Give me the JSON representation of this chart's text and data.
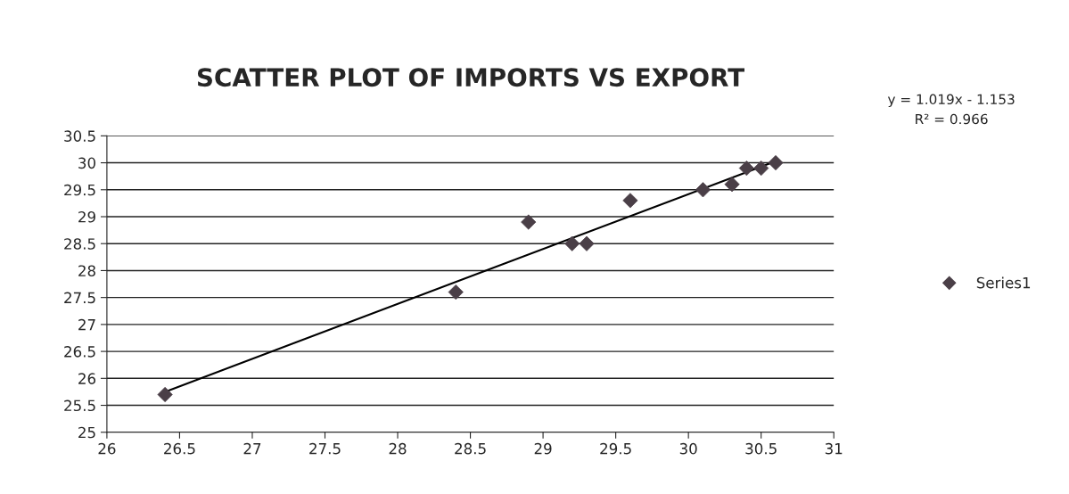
{
  "chart_data": {
    "type": "scatter",
    "title": "SCATTER PLOT OF IMPORTS VS EXPORT",
    "series": [
      {
        "name": "Series1",
        "color": "#4a3f47",
        "marker": "diamond",
        "x": [
          26.4,
          28.4,
          28.9,
          29.2,
          29.3,
          29.6,
          30.1,
          30.3,
          30.4,
          30.5,
          30.6
        ],
        "values": [
          25.7,
          27.6,
          28.9,
          28.5,
          28.5,
          29.3,
          29.5,
          29.6,
          29.9,
          29.9,
          30.0
        ]
      },
      {
        "type": "line",
        "color": "#000000",
        "marker": "none",
        "line_style": "solid",
        "x": [
          26.4,
          30.6
        ],
        "values": [
          25.75,
          30.03
        ]
      }
    ],
    "annotations": [
      "y = 1.019x - 1.153",
      "R² = 0.966"
    ],
    "xlim": [
      26,
      31
    ],
    "xticks": [
      26,
      26.5,
      27,
      27.5,
      28,
      28.5,
      29,
      29.5,
      30,
      30.5,
      31
    ],
    "ylim": [
      25,
      30.5
    ],
    "yticks": [
      25,
      25.5,
      26,
      26.5,
      27,
      27.5,
      28,
      28.5,
      29,
      29.5,
      30,
      30.5
    ],
    "grid": "y",
    "legend": "right"
  }
}
